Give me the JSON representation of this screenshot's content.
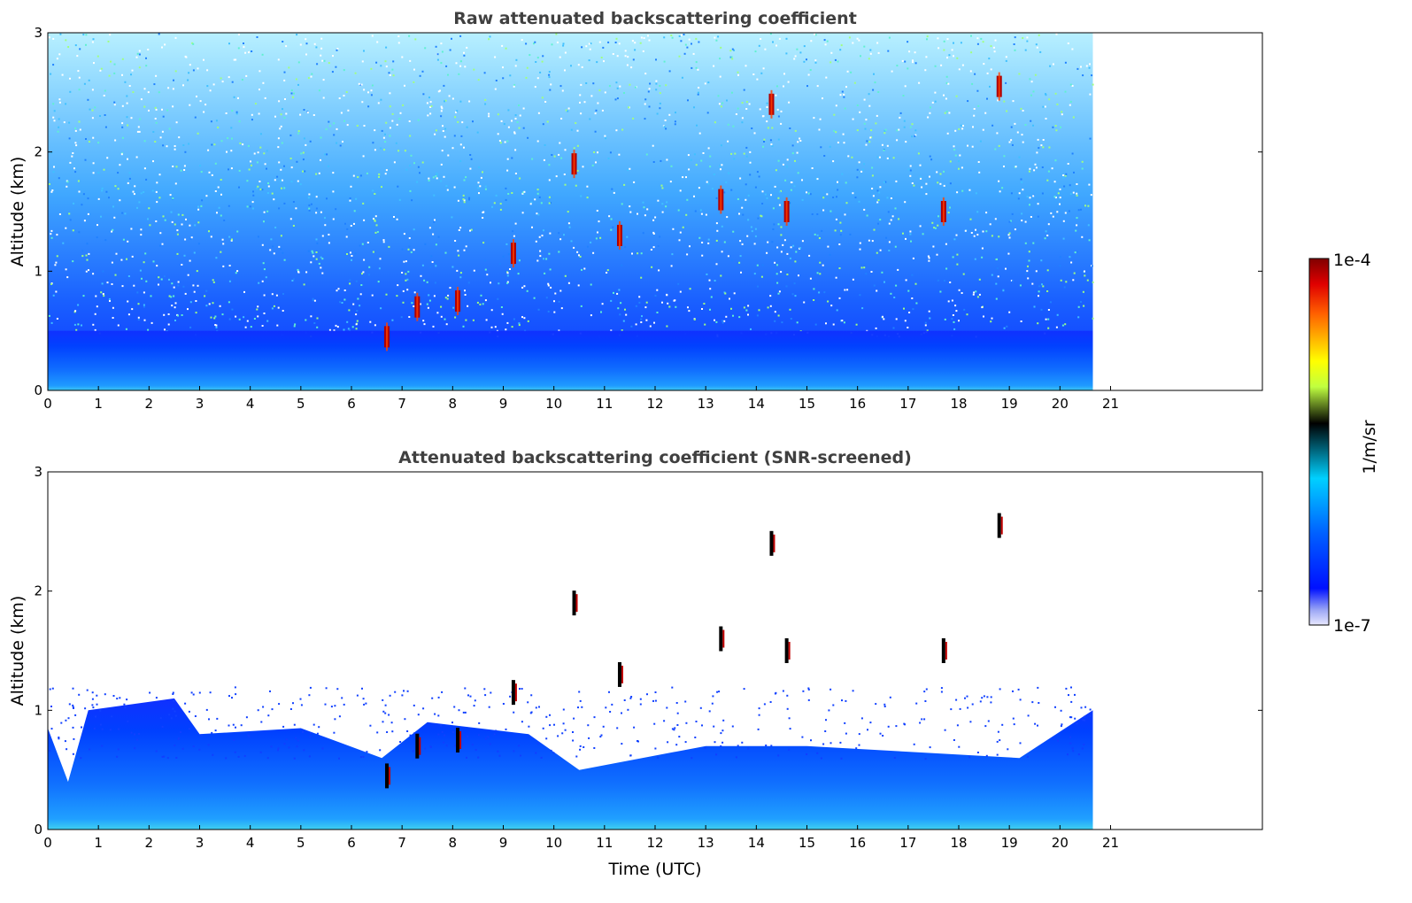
{
  "chart_data": [
    {
      "type": "heatmap",
      "title": "Raw attenuated backscattering coefficient",
      "xlabel": "",
      "ylabel": "Altitude (km)",
      "xlim": [
        0,
        24
      ],
      "ylim": [
        0,
        3
      ],
      "x_ticks": [
        "0",
        "1",
        "2",
        "3",
        "4",
        "5",
        "6",
        "7",
        "8",
        "9",
        "10",
        "11",
        "12",
        "13",
        "14",
        "15",
        "16",
        "17",
        "18",
        "19",
        "20",
        "21"
      ],
      "y_ticks": [
        "0",
        "1",
        "2",
        "3"
      ],
      "data_end_time": 20.65,
      "noise_floor_km": 0.5,
      "features": [
        {
          "time": 6.7,
          "alt": 0.45,
          "kind": "cloud"
        },
        {
          "time": 7.3,
          "alt": 0.7,
          "kind": "cloud"
        },
        {
          "time": 8.1,
          "alt": 0.75,
          "kind": "cloud"
        },
        {
          "time": 9.2,
          "alt": 1.15,
          "kind": "cloud"
        },
        {
          "time": 10.4,
          "alt": 1.9,
          "kind": "cloud"
        },
        {
          "time": 11.3,
          "alt": 1.3,
          "kind": "cloud"
        },
        {
          "time": 13.3,
          "alt": 1.6,
          "kind": "cloud"
        },
        {
          "time": 14.3,
          "alt": 2.4,
          "kind": "cloud"
        },
        {
          "time": 14.6,
          "alt": 1.5,
          "kind": "cloud"
        },
        {
          "time": 17.7,
          "alt": 1.5,
          "kind": "cloud"
        },
        {
          "time": 18.8,
          "alt": 2.55,
          "kind": "cloud"
        }
      ]
    },
    {
      "type": "heatmap",
      "title": "Attenuated backscattering coefficient (SNR-screened)",
      "xlabel": "Time (UTC)",
      "ylabel": "Altitude (km)",
      "xlim": [
        0,
        24
      ],
      "ylim": [
        0,
        3
      ],
      "x_ticks": [
        "0",
        "1",
        "2",
        "3",
        "4",
        "5",
        "6",
        "7",
        "8",
        "9",
        "10",
        "11",
        "12",
        "13",
        "14",
        "15",
        "16",
        "17",
        "18",
        "19",
        "20",
        "21"
      ],
      "y_ticks": [
        "0",
        "1",
        "2",
        "3"
      ],
      "data_end_time": 20.65,
      "boundary_layer_top_km": [
        {
          "time": 0.0,
          "alt": 0.85
        },
        {
          "time": 0.4,
          "alt": 0.4
        },
        {
          "time": 0.8,
          "alt": 1.0
        },
        {
          "time": 2.5,
          "alt": 1.1
        },
        {
          "time": 3.0,
          "alt": 0.8
        },
        {
          "time": 5.0,
          "alt": 0.85
        },
        {
          "time": 6.6,
          "alt": 0.6
        },
        {
          "time": 7.5,
          "alt": 0.9
        },
        {
          "time": 9.5,
          "alt": 0.8
        },
        {
          "time": 10.5,
          "alt": 0.5
        },
        {
          "time": 13.0,
          "alt": 0.7
        },
        {
          "time": 15.0,
          "alt": 0.7
        },
        {
          "time": 19.2,
          "alt": 0.6
        },
        {
          "time": 20.65,
          "alt": 1.0
        }
      ]
    }
  ],
  "colorbar": {
    "label": "1/m/sr",
    "max_label": "1e-4",
    "min_label": "1e-7"
  }
}
